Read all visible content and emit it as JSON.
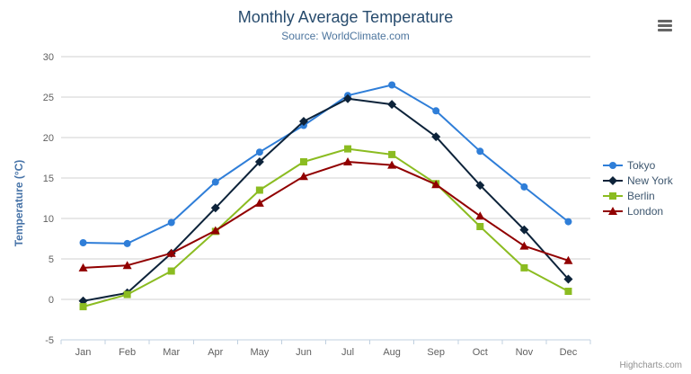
{
  "chart": {
    "credit": "Highcharts.com",
    "export_icon": "hamburger-icon"
  },
  "chart_data": {
    "type": "line",
    "title": "Monthly Average Temperature",
    "subtitle": "Source: WorldClimate.com",
    "xlabel": "",
    "ylabel": "Temperature (°C)",
    "categories": [
      "Jan",
      "Feb",
      "Mar",
      "Apr",
      "May",
      "Jun",
      "Jul",
      "Aug",
      "Sep",
      "Oct",
      "Nov",
      "Dec"
    ],
    "series": [
      {
        "name": "Tokyo",
        "color": "#2f7ed8",
        "marker": "circle",
        "values": [
          7.0,
          6.9,
          9.5,
          14.5,
          18.2,
          21.5,
          25.2,
          26.5,
          23.3,
          18.3,
          13.9,
          9.6
        ]
      },
      {
        "name": "New York",
        "color": "#0d233a",
        "marker": "diamond",
        "values": [
          -0.2,
          0.8,
          5.7,
          11.3,
          17.0,
          22.0,
          24.8,
          24.1,
          20.1,
          14.1,
          8.6,
          2.5
        ]
      },
      {
        "name": "Berlin",
        "color": "#8bbc21",
        "marker": "square",
        "values": [
          -0.9,
          0.6,
          3.5,
          8.4,
          13.5,
          17.0,
          18.6,
          17.9,
          14.3,
          9.0,
          3.9,
          1.0
        ]
      },
      {
        "name": "London",
        "color": "#910000",
        "marker": "triangle",
        "values": [
          3.9,
          4.2,
          5.7,
          8.5,
          11.9,
          15.2,
          17.0,
          16.6,
          14.2,
          10.3,
          6.6,
          4.8
        ]
      }
    ],
    "ylim": [
      -5,
      30
    ],
    "ytick_interval": 5,
    "grid": true,
    "legend_position": "right",
    "colors": {
      "gridline": "#d0d0d0",
      "axis_line": "#c0d0e0",
      "tick_label": "#606060",
      "title": "#274b6d",
      "subtitle": "#4d759e",
      "y_axis_title": "#4572a7",
      "legend_text": "#3e576f",
      "credit_text": "#909090"
    }
  }
}
